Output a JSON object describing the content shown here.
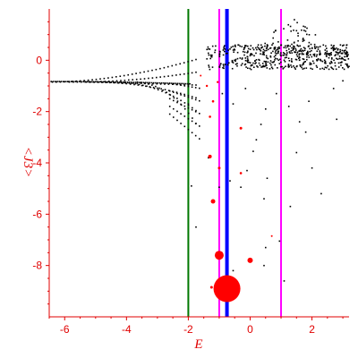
{
  "chart_data": {
    "type": "scatter",
    "title": "",
    "xlabel": "E",
    "ylabel": "<J3>",
    "xlim": [
      -6.5,
      3.2
    ],
    "ylim": [
      -10.0,
      2.0
    ],
    "xticks": [
      -6,
      -4,
      -2,
      0,
      2
    ],
    "yticks": [
      0,
      -2,
      -4,
      -6,
      -8
    ],
    "grid": false,
    "colors": {
      "axis": "#e00000",
      "points_black": "#000000",
      "points_red": "#ff0000",
      "line_green": "#007700",
      "line_magenta": "#ff00ff",
      "line_blue": "#0000ff"
    },
    "vertical_lines": [
      {
        "x": -2.0,
        "color": "#007700",
        "width": 2
      },
      {
        "x": -1.0,
        "color": "#ff00ff",
        "width": 2
      },
      {
        "x": -0.75,
        "color": "#0000ff",
        "width": 4
      },
      {
        "x": 1.0,
        "color": "#ff00ff",
        "width": 2
      }
    ],
    "red_points": [
      {
        "x": -0.75,
        "y": -8.9,
        "r": 15
      },
      {
        "x": -1.0,
        "y": -7.6,
        "r": 5
      },
      {
        "x": 0.0,
        "y": -7.8,
        "r": 3
      },
      {
        "x": -1.2,
        "y": -5.5,
        "r": 2.5
      },
      {
        "x": -1.3,
        "y": -3.75,
        "r": 2
      },
      {
        "x": -1.0,
        "y": -4.2,
        "r": 1.5
      },
      {
        "x": -0.3,
        "y": -2.65,
        "r": 1.5
      },
      {
        "x": -0.3,
        "y": -4.4,
        "r": 1.3
      },
      {
        "x": -1.3,
        "y": -2.2,
        "r": 1.3
      },
      {
        "x": -1.2,
        "y": -1.6,
        "r": 1.3
      },
      {
        "x": -1.4,
        "y": -1.0,
        "r": 1.2
      },
      {
        "x": -1.05,
        "y": -0.85,
        "r": 1.2
      },
      {
        "x": -1.6,
        "y": -0.6,
        "r": 1.0
      },
      {
        "x": 0.7,
        "y": -6.85,
        "r": 1.0
      },
      {
        "x": -1.25,
        "y": -8.85,
        "r": 1.5
      }
    ],
    "scattered_black": [
      [
        -1.9,
        -4.9
      ],
      [
        -1.75,
        -6.5
      ],
      [
        -1.35,
        -3.8
      ],
      [
        -1.0,
        -4.95
      ],
      [
        -0.65,
        -4.7
      ],
      [
        -0.3,
        -4.95
      ],
      [
        -0.1,
        -4.3
      ],
      [
        0.2,
        -3.1
      ],
      [
        0.35,
        -2.5
      ],
      [
        0.5,
        -1.9
      ],
      [
        0.85,
        -1.3
      ],
      [
        1.25,
        -1.8
      ],
      [
        1.6,
        -2.4
      ],
      [
        1.8,
        -2.8
      ],
      [
        2.0,
        -4.2
      ],
      [
        2.3,
        -5.2
      ],
      [
        1.9,
        -1.6
      ],
      [
        2.7,
        -1.1
      ],
      [
        3.0,
        -0.8
      ],
      [
        2.55,
        -0.35
      ],
      [
        1.3,
        -5.7
      ],
      [
        0.45,
        -5.4
      ],
      [
        0.55,
        -4.6
      ],
      [
        0.95,
        -7.05
      ],
      [
        0.5,
        -7.3
      ],
      [
        0.45,
        -8.0
      ],
      [
        1.1,
        -8.6
      ],
      [
        -0.55,
        -8.2
      ],
      [
        -0.9,
        -1.3
      ],
      [
        -0.55,
        -1.7
      ],
      [
        -0.15,
        -1.1
      ],
      [
        2.8,
        -2.3
      ],
      [
        1.5,
        -3.6
      ],
      [
        0.1,
        -3.55
      ],
      [
        -2.0,
        -1.7
      ]
    ]
  }
}
